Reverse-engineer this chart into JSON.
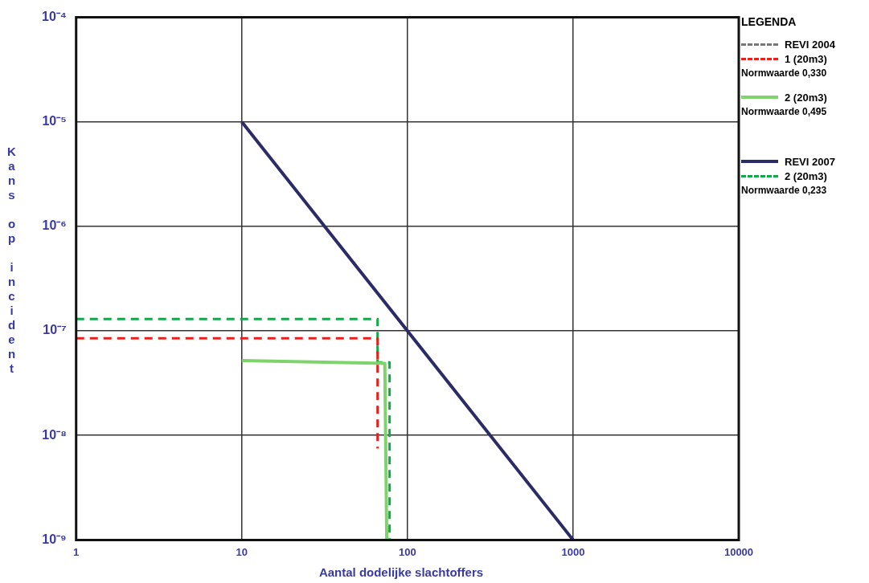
{
  "chart_data": {
    "type": "line",
    "xlabel": "Aantal dodelijke slachtoffers",
    "ylabel": "Kans op incident",
    "legend_title": "LEGENDA",
    "log": "xy",
    "grid": true,
    "legend": "right",
    "marker": "none",
    "xlim": [
      1,
      10000
    ],
    "xticks": [
      1,
      10,
      100,
      1000,
      10000
    ],
    "ylim": [
      1e-09,
      0.0001
    ],
    "yticks": [
      {
        "value": 1e-09,
        "label": "10⁻⁹"
      },
      {
        "value": 1e-08,
        "label": "10⁻⁸"
      },
      {
        "value": 1e-07,
        "label": "10⁻⁷"
      },
      {
        "value": 1e-06,
        "label": "10⁻⁶"
      },
      {
        "value": 1e-05,
        "label": "10⁻⁵"
      },
      {
        "value": 0.0001,
        "label": "10⁻⁴"
      }
    ],
    "annotations": [
      "REVI 2004",
      "Normwaarde 0,330",
      "Normwaarde 0,495",
      "Normwaarde 0,233"
    ],
    "series": [
      {
        "name": "1 (20m3)",
        "color": "#e8201c",
        "line_style": "dashed",
        "x": [
          1,
          66,
          66
        ],
        "values": [
          8.5e-08,
          8.5e-08,
          7.5e-09
        ]
      },
      {
        "name": "2 (20m3)",
        "color": "#7ed36c",
        "line_style": "solid",
        "x": [
          10,
          73,
          75
        ],
        "values": [
          5.2e-08,
          4.9e-08,
          1e-09
        ]
      },
      {
        "name": "REVI 2007",
        "color": "#2b2b66",
        "line_style": "solid",
        "x": [
          10,
          1000
        ],
        "values": [
          1e-05,
          1e-09
        ]
      },
      {
        "name": "2 (20m3)",
        "color": "#11a84a",
        "line_style": "dashed",
        "x": [
          1,
          66,
          66,
          78,
          78
        ],
        "values": [
          1.3e-07,
          1.3e-07,
          5e-08,
          5e-08,
          1e-09
        ]
      }
    ]
  }
}
